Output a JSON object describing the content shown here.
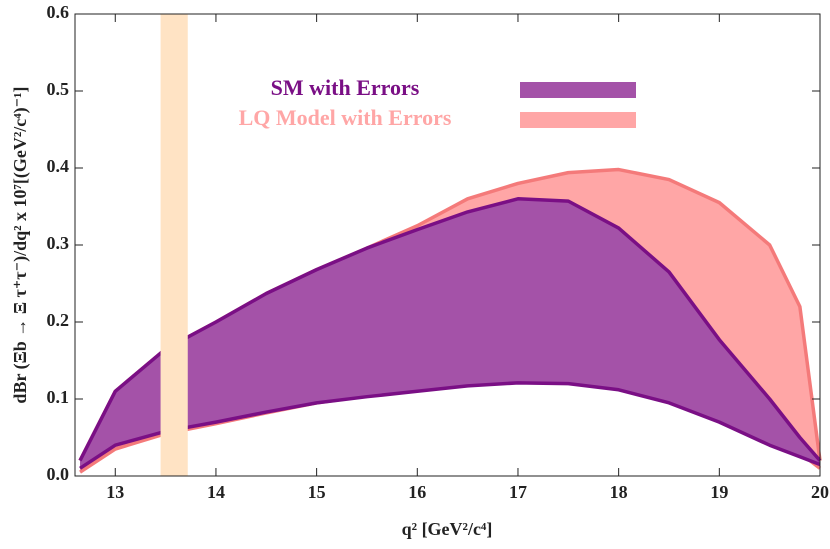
{
  "chart_data": {
    "type": "band",
    "x_label": "q² [GeV²/c⁴]",
    "y_label": "dBr (Ξb → Ξ τ⁺τ⁻)/dq² x 10⁷[(GeV²/c⁴)⁻¹]",
    "x": [
      12.65,
      13,
      13.5,
      14,
      14.5,
      15,
      15.5,
      16,
      16.5,
      17,
      17.5,
      18,
      18.5,
      19,
      19.5,
      19.8,
      20
    ],
    "series": [
      {
        "name": "LQ Model with Errors",
        "color": "#ffa6a6",
        "line_color": "#f47a7a",
        "upper": [
          0.02,
          0.11,
          0.165,
          0.2,
          0.237,
          0.268,
          0.296,
          0.325,
          0.36,
          0.38,
          0.394,
          0.398,
          0.385,
          0.355,
          0.3,
          0.22,
          0.02
        ],
        "lower": [
          0.005,
          0.035,
          0.055,
          0.068,
          0.082,
          0.095,
          0.104,
          0.112,
          0.12,
          0.125,
          0.125,
          0.117,
          0.1,
          0.075,
          0.045,
          0.03,
          0.01
        ]
      },
      {
        "name": "SM with Errors",
        "color": "#a452a8",
        "line_color": "#7a0f85",
        "upper": [
          0.02,
          0.11,
          0.165,
          0.2,
          0.237,
          0.268,
          0.296,
          0.32,
          0.343,
          0.36,
          0.357,
          0.322,
          0.265,
          0.177,
          0.1,
          0.05,
          0.02
        ],
        "lower": [
          0.01,
          0.04,
          0.058,
          0.07,
          0.083,
          0.095,
          0.103,
          0.11,
          0.117,
          0.121,
          0.12,
          0.112,
          0.095,
          0.07,
          0.04,
          0.025,
          0.015
        ]
      }
    ],
    "shaded_region": [
      13.45,
      13.72
    ],
    "shaded_color": "#ffe3c4",
    "xlim": [
      12.6,
      20
    ],
    "ylim": [
      0,
      0.6
    ],
    "xticks": [
      13,
      14,
      15,
      16,
      17,
      18,
      19,
      20
    ],
    "yticks": [
      {
        "value": 0,
        "label": "0.0"
      },
      0.1,
      0.2,
      0.3,
      0.4,
      0.5,
      0.6
    ]
  }
}
